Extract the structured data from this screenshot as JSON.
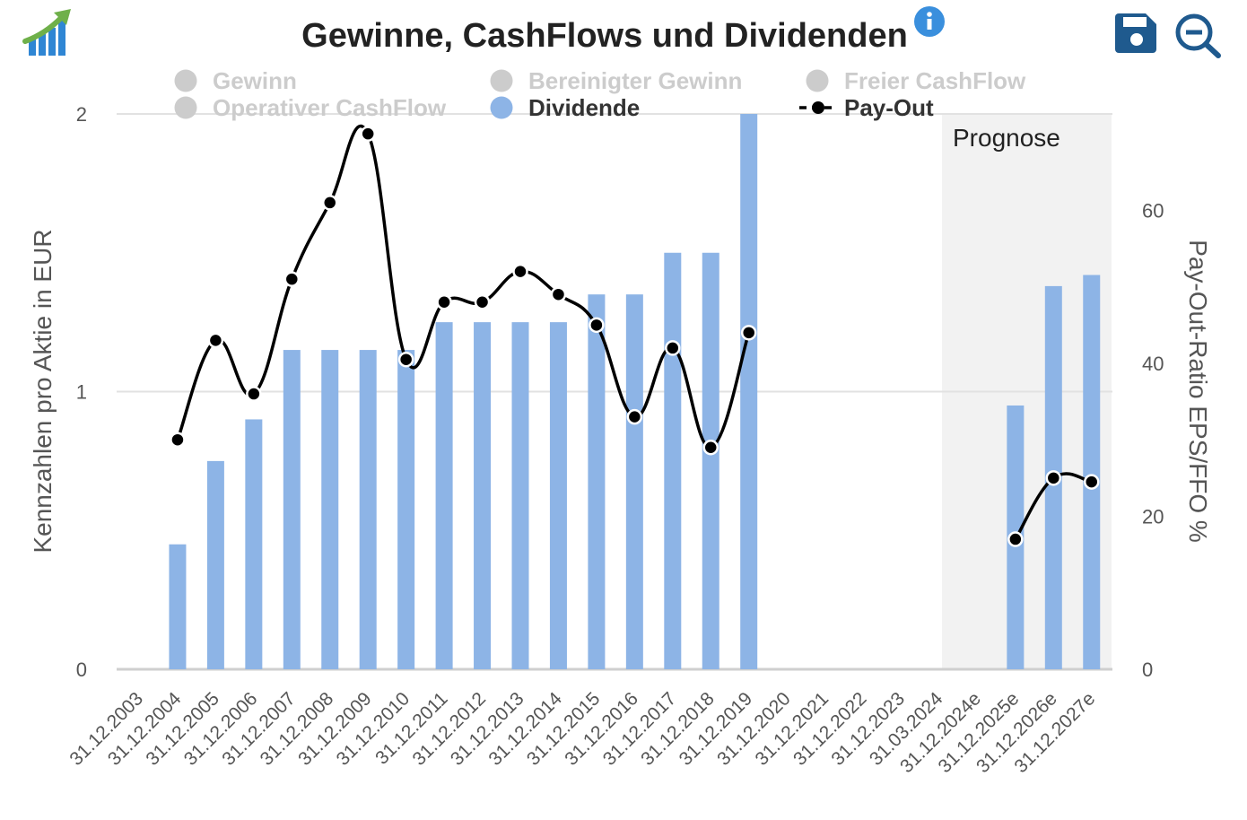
{
  "header": {
    "title": "Gewinne, CashFlows und Dividenden",
    "info_icon": "info-icon",
    "save_icon": "save-icon",
    "zoom_icon": "zoom-out-icon",
    "logo_icon": "growth-chart-logo-icon"
  },
  "colors": {
    "bar": "#8DB4E6",
    "line": "#000000",
    "legend_inactive": "#CCCCCC",
    "legend_active_text": "#333333",
    "forecast_band": "#F2F2F2",
    "accent_blue": "#1F5A8E"
  },
  "chart_data": {
    "type": "bar",
    "title": "Gewinne, CashFlows und Dividenden",
    "categories": [
      "31.12.2003",
      "31.12.2004",
      "31.12.2005",
      "31.12.2006",
      "31.12.2007",
      "31.12.2008",
      "31.12.2009",
      "31.12.2010",
      "31.12.2011",
      "31.12.2012",
      "31.12.2013",
      "31.12.2014",
      "31.12.2015",
      "31.12.2016",
      "31.12.2017",
      "31.12.2018",
      "31.12.2019",
      "31.12.2020",
      "31.12.2021",
      "31.12.2022",
      "31.12.2023",
      "31.03.2024",
      "31.12.2024e",
      "31.12.2025e",
      "31.12.2026e",
      "31.12.2027e"
    ],
    "legend": [
      {
        "name": "Gewinn",
        "active": false,
        "marker": "circle"
      },
      {
        "name": "Bereinigter Gewinn",
        "active": false,
        "marker": "circle"
      },
      {
        "name": "Freier CashFlow",
        "active": false,
        "marker": "circle"
      },
      {
        "name": "Operativer CashFlow",
        "active": false,
        "marker": "circle"
      },
      {
        "name": "Dividende",
        "active": true,
        "marker": "circle"
      },
      {
        "name": "Pay-Out",
        "active": true,
        "marker": "line"
      }
    ],
    "series": [
      {
        "name": "Dividende",
        "type": "bar",
        "axis": "left",
        "values": [
          null,
          0.45,
          0.75,
          0.9,
          1.15,
          1.15,
          1.15,
          1.15,
          1.25,
          1.25,
          1.25,
          1.25,
          1.35,
          1.35,
          1.5,
          1.5,
          2.0,
          null,
          null,
          null,
          null,
          null,
          null,
          0.95,
          1.38,
          1.42
        ]
      },
      {
        "name": "Pay-Out",
        "type": "line",
        "axis": "right",
        "values": [
          null,
          30,
          43,
          36,
          51,
          61,
          70,
          40.5,
          48,
          48,
          52,
          49,
          45,
          33,
          42,
          29,
          44,
          null,
          null,
          null,
          null,
          null,
          null,
          17,
          25,
          24.5
        ]
      }
    ],
    "ylabel": "Kennzahlen pro Aktie in EUR",
    "ylabel_right": "Pay-Out-Ratio EPS/FFO %",
    "ylim": [
      0,
      2
    ],
    "yticks": [
      "0",
      "1",
      "2"
    ],
    "ylim_right": [
      0,
      72.6
    ],
    "yticks_right": [
      "0",
      "20",
      "40",
      "60"
    ],
    "forecast_label": "Prognose",
    "forecast_start_index": 22,
    "grid": true
  }
}
